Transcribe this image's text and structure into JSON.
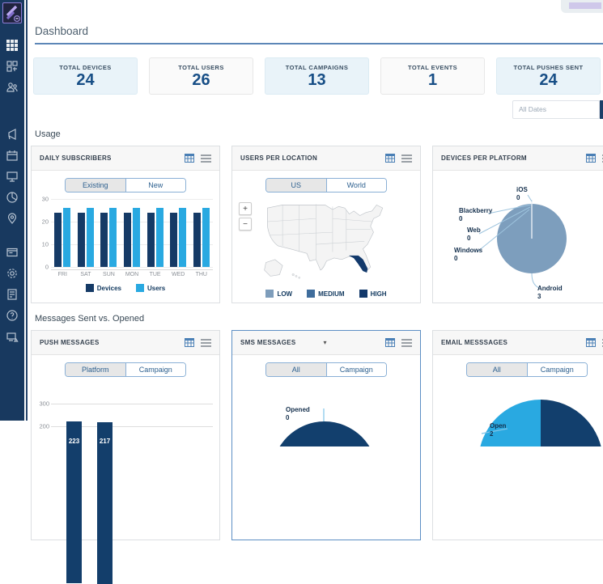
{
  "header": {
    "title": "Dashboard"
  },
  "sidebar": {
    "icons": [
      "logo",
      "grid-dashboard",
      "apps",
      "audience-users",
      "campaigns-megaphone",
      "planner-calendar",
      "devices-monitor",
      "analytics-pie",
      "locations-pin",
      "pages-window",
      "settings-gear",
      "reports-document",
      "help",
      "device-alerts"
    ]
  },
  "stats": {
    "cards": [
      {
        "label": "TOTAL DEVICES",
        "value": "24"
      },
      {
        "label": "TOTAL USERS",
        "value": "26"
      },
      {
        "label": "TOTAL CAMPAIGNS",
        "value": "13"
      },
      {
        "label": "TOTAL EVENTS",
        "value": "1"
      },
      {
        "label": "TOTAL PUSHES SENT",
        "value": "24"
      }
    ]
  },
  "filter": {
    "placeholder": "All Dates"
  },
  "sections": {
    "usage": "Usage",
    "messages": "Messages Sent vs. Opened"
  },
  "usage_panels": {
    "daily_subscribers": {
      "title": "DAILY SUBSCRIBERS",
      "toggle": {
        "options": [
          "Existing",
          "New"
        ],
        "selected": "Existing"
      },
      "legend": [
        {
          "label": "Devices",
          "color": "#153a66"
        },
        {
          "label": "Users",
          "color": "#29a9e1"
        }
      ]
    },
    "users_per_location": {
      "title": "USERS PER LOCATION",
      "toggle": {
        "options": [
          "US",
          "World"
        ],
        "selected": "US"
      },
      "zoom_in": "+",
      "zoom_out": "−",
      "legend": [
        {
          "label": "LOW",
          "color": "#7e9dbb"
        },
        {
          "label": "MEDIUM",
          "color": "#3f6d9c"
        },
        {
          "label": "HIGH",
          "color": "#12396b"
        }
      ]
    },
    "devices_per_platform": {
      "title": "DEVICES PER PLATFORM",
      "slices": [
        {
          "label": "iOS",
          "value": "0"
        },
        {
          "label": "Blackberry",
          "value": "0"
        },
        {
          "label": "Web",
          "value": "0"
        },
        {
          "label": "Windows",
          "value": "0"
        },
        {
          "label": "Android",
          "value": "3"
        }
      ]
    }
  },
  "message_panels": {
    "push_messages": {
      "title": "PUSH MESSAGES",
      "toggle": {
        "options": [
          "Platform",
          "Campaign"
        ],
        "selected": "Platform"
      }
    },
    "sms_messages": {
      "title": "SMS MESSAGES",
      "dropdown_caret": "▾",
      "toggle": {
        "options": [
          "All",
          "Campaign"
        ],
        "selected": "All"
      },
      "callout": {
        "label": "Opened",
        "value": "0"
      }
    },
    "email_messages": {
      "title": "EMAIL MESSSAGES",
      "toggle": {
        "options": [
          "All",
          "Campaign"
        ],
        "selected": "All"
      },
      "callout": {
        "label": "Open",
        "value": "2"
      }
    }
  },
  "chart_data": [
    {
      "type": "bar",
      "title": "DAILY SUBSCRIBERS",
      "categories": [
        "FRI",
        "SAT",
        "SUN",
        "MON",
        "TUE",
        "WED",
        "THU"
      ],
      "series": [
        {
          "name": "Devices",
          "color": "#153a66",
          "values": [
            24,
            24,
            24,
            24,
            24,
            24,
            24
          ]
        },
        {
          "name": "Users",
          "color": "#29a9e1",
          "values": [
            26,
            26,
            26,
            26,
            26,
            26,
            26
          ]
        }
      ],
      "ylim": [
        0,
        30
      ],
      "yticks": [
        0,
        10,
        20,
        30
      ],
      "grid": true,
      "legend_position": "bottom"
    },
    {
      "type": "heatmap",
      "subtype": "choropleth-map",
      "title": "USERS PER LOCATION",
      "region": "US",
      "highlights": [
        {
          "area": "Florida",
          "level": "HIGH"
        }
      ],
      "legend": [
        "LOW",
        "MEDIUM",
        "HIGH"
      ]
    },
    {
      "type": "pie",
      "title": "DEVICES PER PLATFORM",
      "labels": [
        "iOS",
        "Blackberry",
        "Web",
        "Windows",
        "Android"
      ],
      "values": [
        0,
        0,
        0,
        0,
        3
      ],
      "slice_color": "#7d9ebd"
    },
    {
      "type": "bar",
      "title": "PUSH MESSAGES",
      "values": [
        223,
        217
      ],
      "visible_yticks": [
        300,
        200
      ],
      "bar_color": "#133e6b",
      "note": "bottom of chart clipped by viewport"
    },
    {
      "type": "pie",
      "title": "SMS MESSAGES",
      "labels": [
        "Opened"
      ],
      "values": [
        0
      ],
      "visible": "full navy circle, top arc only",
      "color": "#123f6d"
    },
    {
      "type": "pie",
      "title": "EMAIL MESSSAGES",
      "labels": [
        "Open"
      ],
      "values": [
        2
      ],
      "visible_split": [
        0.5,
        0.5
      ],
      "colors": [
        "#29a9e1",
        "#123f6d"
      ]
    }
  ]
}
